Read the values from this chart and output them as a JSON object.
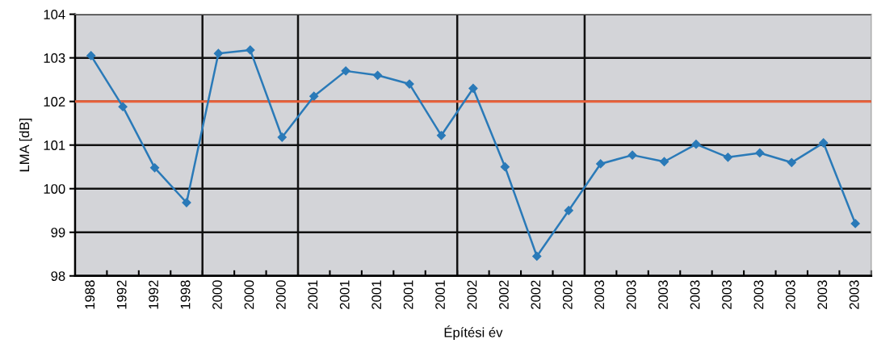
{
  "chart_data": {
    "type": "line",
    "xlabel": "Építési év",
    "ylabel": "LMA [dB]",
    "categories": [
      "1988",
      "1992",
      "1992",
      "1998",
      "2000",
      "2000",
      "2000",
      "2001",
      "2001",
      "2001",
      "2001",
      "2001",
      "2002",
      "2002",
      "2002",
      "2002",
      "2003",
      "2003",
      "2003",
      "2003",
      "2003",
      "2003",
      "2003",
      "2003",
      "2003"
    ],
    "series": [
      {
        "color": "#2a7ab8",
        "values": [
          103.05,
          101.88,
          100.48,
          99.68,
          103.1,
          103.18,
          101.18,
          102.12,
          102.7,
          102.6,
          102.4,
          101.22,
          102.3,
          100.5,
          98.45,
          99.5,
          100.57,
          100.77,
          100.62,
          101.02,
          100.72,
          100.82,
          100.6,
          101.05,
          99.2
        ]
      }
    ],
    "ylim": [
      98,
      104
    ],
    "yticks": [
      98,
      99,
      100,
      101,
      102,
      103,
      104
    ],
    "grid": "y",
    "marker": "diamond",
    "line_style": "solid",
    "ref_lines": [
      {
        "axis": "y",
        "value": 102,
        "color": "#e8603a"
      }
    ]
  }
}
